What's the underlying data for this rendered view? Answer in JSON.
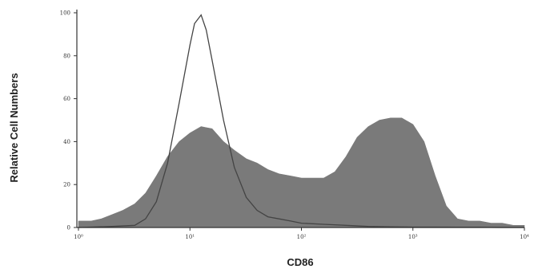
{
  "chart_data": {
    "type": "area",
    "title": "",
    "xlabel": "CD86",
    "ylabel": "Relative Cell Numbers",
    "x_scale": "log",
    "xlim": [
      1,
      10000
    ],
    "ylim": [
      0,
      100
    ],
    "x_ticks": [
      1,
      10,
      100,
      1000,
      10000
    ],
    "x_tick_labels": [
      "10⁰",
      "10¹",
      "10²",
      "10³",
      "10⁴"
    ],
    "y_ticks": [
      0,
      20,
      40,
      60,
      80,
      100
    ],
    "y_tick_labels": [
      "0",
      "20",
      "40",
      "60",
      "80",
      "100"
    ],
    "grid": false,
    "series": [
      {
        "style": "filled",
        "color": "#7a7a7a",
        "x": [
          1,
          1.3,
          1.6,
          2,
          2.5,
          3.2,
          4,
          5,
          6.3,
          8,
          10,
          12.6,
          15.8,
          20,
          25,
          32,
          40,
          50,
          63,
          80,
          100,
          126,
          158,
          200,
          251,
          316,
          398,
          501,
          631,
          794,
          1000,
          1259,
          1585,
          1995,
          2512,
          3162,
          3981,
          5012,
          6310,
          7943,
          10000
        ],
        "y": [
          3,
          3,
          4,
          6,
          8,
          11,
          16,
          24,
          33,
          40,
          44,
          47,
          46,
          40,
          36,
          32,
          30,
          27,
          25,
          24,
          23,
          23,
          23,
          26,
          33,
          42,
          47,
          50,
          51,
          51,
          48,
          40,
          24,
          10,
          4,
          3,
          3,
          2,
          2,
          1,
          1
        ]
      },
      {
        "style": "outline",
        "color": "#444444",
        "x": [
          1,
          2,
          3.2,
          4,
          5,
          6.3,
          8,
          10,
          11,
          12.6,
          14,
          15.8,
          20,
          25,
          32,
          40,
          50,
          63,
          80,
          100,
          158,
          251,
          398,
          631,
          1000,
          1585,
          2512,
          3981,
          6310,
          10000
        ],
        "y": [
          0,
          0.5,
          1,
          4,
          12,
          30,
          58,
          85,
          95,
          99,
          92,
          78,
          50,
          28,
          14,
          8,
          5,
          4,
          3,
          2,
          1.5,
          1,
          0.5,
          0.3,
          0.2,
          0.2,
          0.1,
          0.1,
          0,
          0
        ]
      }
    ]
  }
}
